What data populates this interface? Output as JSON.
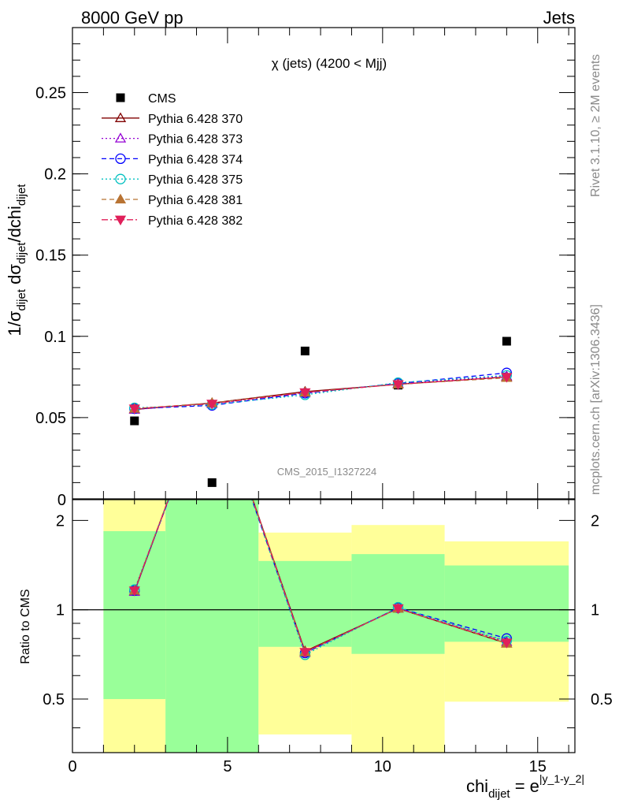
{
  "header": {
    "left_title": "8000 GeV pp",
    "right_title": "Jets"
  },
  "side_notes": {
    "rivet": "Rivet 3.1.10, ≥ 2M events",
    "mcplots": "mcplots.cern.ch [arXiv:1306.3436]"
  },
  "watermark": "CMS_2015_I1327224",
  "chart_data": [
    {
      "type": "scatter",
      "panel": "main",
      "title": "χ (jets) (4200 < Mjj)",
      "ylabel": "1/σ_dijet dσ_dijet/dchi_dijet",
      "xlim": [
        0,
        16.2
      ],
      "ylim": [
        0,
        0.29
      ],
      "x_ticks": [
        0,
        5,
        10,
        15
      ],
      "y_ticks": [
        0.05,
        0.1,
        0.15,
        0.2,
        0.25
      ],
      "y_tick_labels": [
        "0.05",
        "0.1",
        "0.15",
        "0.2",
        "0.25"
      ],
      "y_zero_label": "0",
      "legend_position": "top-left",
      "x": [
        2,
        4.5,
        7.5,
        10.5,
        14
      ],
      "series": [
        {
          "name": "CMS",
          "values": [
            0.048,
            0.01,
            0.091,
            0.07,
            0.097
          ],
          "color": "#000000",
          "marker": "square-filled",
          "dash": "none"
        },
        {
          "name": "Pythia 6.428 370",
          "values": [
            0.055,
            0.059,
            0.066,
            0.0705,
            0.075
          ],
          "color": "#800000",
          "marker": "triangle-up-open",
          "dash": "solid"
        },
        {
          "name": "Pythia 6.428 373",
          "values": [
            0.055,
            0.0585,
            0.065,
            0.071,
            0.0755
          ],
          "color": "#9400d3",
          "marker": "triangle-up-open",
          "dash": "dotted"
        },
        {
          "name": "Pythia 6.428 374",
          "values": [
            0.0555,
            0.0575,
            0.065,
            0.071,
            0.0775
          ],
          "color": "#0000ff",
          "marker": "circle-open",
          "dash": "dashed"
        },
        {
          "name": "Pythia 6.428 375",
          "values": [
            0.056,
            0.058,
            0.064,
            0.0715,
            0.076
          ],
          "color": "#00c0c0",
          "marker": "circle-open",
          "dash": "dotted"
        },
        {
          "name": "Pythia 6.428 381",
          "values": [
            0.0555,
            0.059,
            0.0655,
            0.0705,
            0.0745
          ],
          "color": "#b87333",
          "marker": "triangle-up-filled",
          "dash": "dashed"
        },
        {
          "name": "Pythia 6.428 382",
          "values": [
            0.0555,
            0.0585,
            0.0655,
            0.0705,
            0.075
          ],
          "color": "#e0205a",
          "marker": "triangle-down-filled",
          "dash": "dashdot"
        }
      ]
    },
    {
      "type": "line",
      "panel": "ratio",
      "ylabel": "Ratio to CMS",
      "xlabel": "chi_dijet = e^|y_1-y_2|",
      "xlim": [
        0,
        16.2
      ],
      "ylim": [
        0.33,
        2.35
      ],
      "y_scale": "log",
      "x_ticks": [
        0,
        5,
        10,
        15
      ],
      "x_tick_labels": [
        "0",
        "5",
        "10",
        "15"
      ],
      "y_ticks": [
        0.5,
        1,
        2
      ],
      "y_tick_labels": [
        "0.5",
        "1",
        "2"
      ],
      "reference_line": 1,
      "bands": [
        {
          "x_range": [
            1,
            3
          ],
          "inner": [
            0.5,
            1.84
          ],
          "outer": [
            0.33,
            2.35
          ]
        },
        {
          "x_range": [
            3,
            6
          ],
          "inner": [
            0.33,
            2.35
          ],
          "outer": [
            0.33,
            2.35
          ]
        },
        {
          "x_range": [
            6,
            9
          ],
          "inner": [
            0.75,
            1.46
          ],
          "outer": [
            0.38,
            1.82
          ]
        },
        {
          "x_range": [
            9,
            12
          ],
          "inner": [
            0.71,
            1.54
          ],
          "outer": [
            0.33,
            1.93
          ]
        },
        {
          "x_range": [
            12,
            16
          ],
          "inner": [
            0.78,
            1.41
          ],
          "outer": [
            0.49,
            1.7
          ]
        }
      ],
      "x": [
        2,
        4.5,
        7.5,
        10.5,
        14
      ],
      "series": [
        {
          "name": "Pythia 6.428 370",
          "values": [
            1.15,
            5.9,
            0.725,
            1.01,
            0.77
          ],
          "color": "#800000",
          "marker": "triangle-up-open",
          "dash": "solid"
        },
        {
          "name": "Pythia 6.428 373",
          "values": [
            1.15,
            5.85,
            0.715,
            1.015,
            0.78
          ],
          "color": "#9400d3",
          "marker": "triangle-up-open",
          "dash": "dotted"
        },
        {
          "name": "Pythia 6.428 374",
          "values": [
            1.16,
            5.75,
            0.715,
            1.015,
            0.8
          ],
          "color": "#0000ff",
          "marker": "circle-open",
          "dash": "dashed"
        },
        {
          "name": "Pythia 6.428 375",
          "values": [
            1.17,
            5.8,
            0.705,
            1.02,
            0.785
          ],
          "color": "#00c0c0",
          "marker": "circle-open",
          "dash": "dotted"
        },
        {
          "name": "Pythia 6.428 381",
          "values": [
            1.16,
            5.9,
            0.72,
            1.01,
            0.77
          ],
          "color": "#b87333",
          "marker": "triangle-up-filled",
          "dash": "dashed"
        },
        {
          "name": "Pythia 6.428 382",
          "values": [
            1.16,
            5.85,
            0.72,
            1.01,
            0.775
          ],
          "color": "#e0205a",
          "marker": "triangle-down-filled",
          "dash": "dashdot"
        }
      ]
    }
  ],
  "colors": {
    "band_inner": "#99ff99",
    "band_outer": "#ffff99",
    "frame": "#000000"
  }
}
